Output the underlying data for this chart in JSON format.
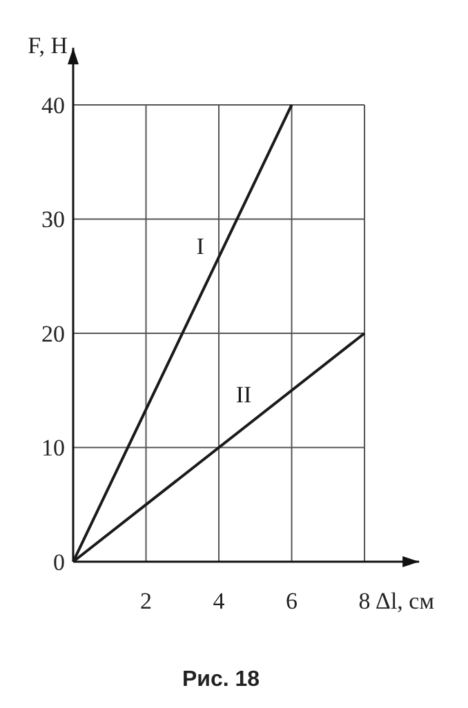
{
  "chart_data": {
    "type": "line",
    "xlabel": "Δl, см",
    "ylabel": "F, Н",
    "series": [
      {
        "name": "I",
        "color": "#1a1a1a",
        "values": [
          0,
          40
        ],
        "x": [
          0,
          6
        ]
      },
      {
        "name": "II",
        "color": "#1a1a1a",
        "values": [
          0,
          20
        ],
        "x": [
          0,
          8
        ]
      }
    ],
    "xlim": [
      0,
      9.5
    ],
    "ylim": [
      0,
      45
    ],
    "xticks": [
      2,
      4,
      6,
      8
    ],
    "yticks": [
      0,
      10,
      20,
      30,
      40
    ],
    "grid": true,
    "marker": "none",
    "line_style": "solid",
    "annotations": [
      "Рис. 18"
    ]
  }
}
